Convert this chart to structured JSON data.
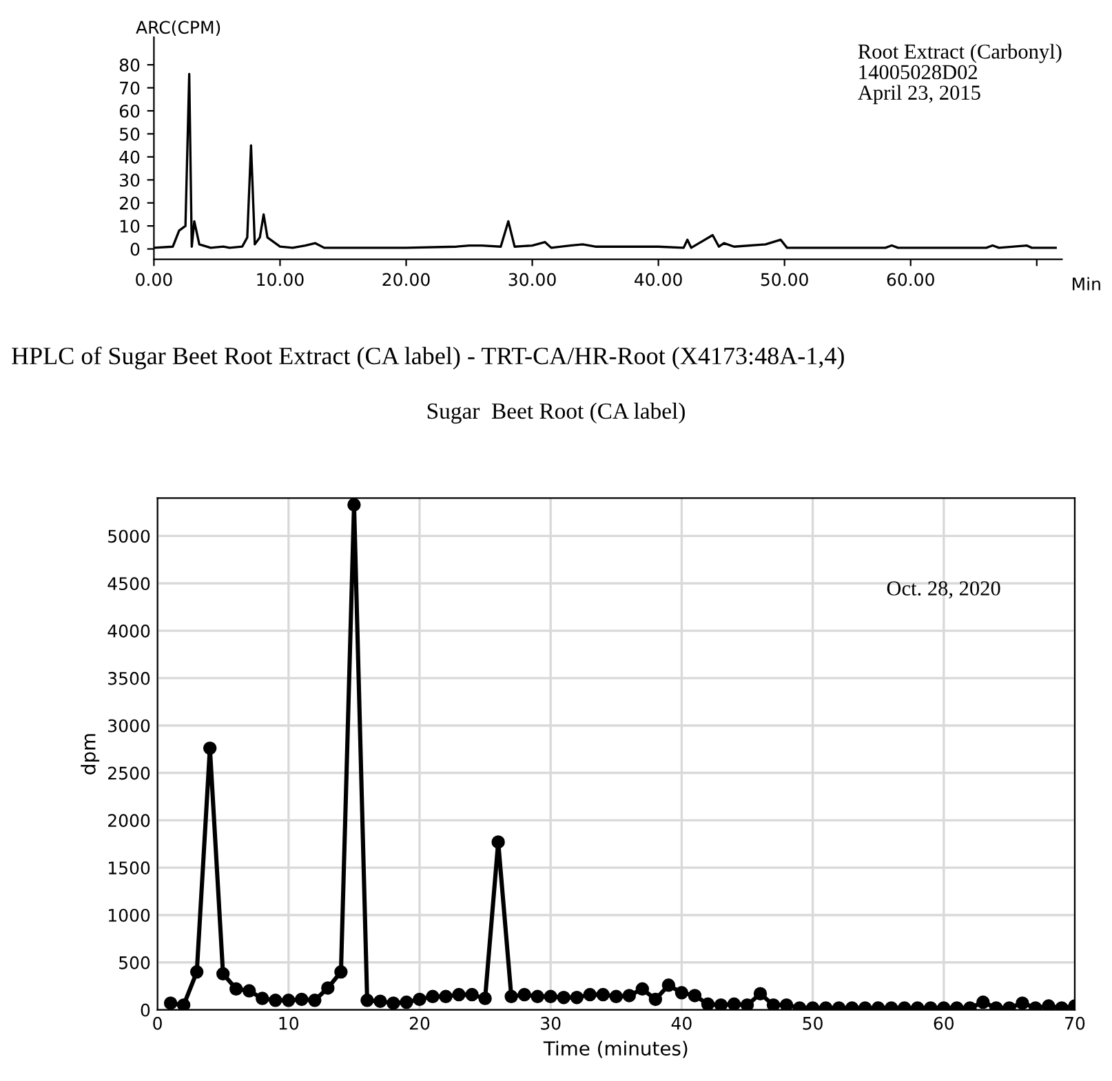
{
  "chart_data": [
    {
      "type": "line",
      "ylabel": "ARC(CPM)",
      "xlabel": "Min",
      "annotations": [
        "Root Extract (Carbonyl)\n14005028D02\nApril 23, 2015"
      ],
      "series": [
        {
          "color": "#000000",
          "x": [
            0,
            1.5,
            2.0,
            2.5,
            2.8,
            3.0,
            3.2,
            3.6,
            4.5,
            5.5,
            6,
            7,
            7.4,
            7.7,
            8.0,
            8.4,
            8.7,
            9.0,
            10,
            11,
            12,
            12.8,
            13.5,
            20,
            24,
            25,
            26,
            27.5,
            28.1,
            28.6,
            30,
            31,
            31.5,
            33,
            34,
            35,
            40,
            42,
            42.3,
            42.6,
            44.3,
            44.8,
            45.2,
            46,
            48.5,
            49.7,
            50.2,
            58,
            58.5,
            59,
            66,
            66.5,
            67,
            69.2,
            69.6,
            71.5
          ],
          "values": [
            0.5,
            1,
            8,
            10,
            76,
            1,
            12,
            2,
            0.5,
            1,
            0.5,
            1,
            5,
            45,
            2,
            5,
            15,
            5,
            1,
            0.5,
            1.5,
            2.5,
            0.5,
            0.5,
            1,
            1.5,
            1.5,
            1,
            12,
            1,
            1.5,
            3,
            0.5,
            1.5,
            2,
            1,
            1,
            0.5,
            4,
            0.5,
            6,
            1,
            2.5,
            1,
            2,
            4,
            0.5,
            0.5,
            1.5,
            0.5,
            0.5,
            1.5,
            0.5,
            1.5,
            0.5,
            0.5
          ]
        }
      ],
      "xlim": [
        0,
        72
      ],
      "xticks": [
        {
          "value": 0,
          "label": "0.00"
        },
        {
          "value": 10,
          "label": "10.00"
        },
        {
          "value": 20,
          "label": "20.00"
        },
        {
          "value": 30,
          "label": "30.00"
        },
        {
          "value": 40,
          "label": "40.00"
        },
        {
          "value": 50,
          "label": "50.00"
        },
        {
          "value": 60,
          "label": "60.00"
        },
        {
          "value": 70,
          "label": null
        }
      ],
      "ylim": [
        -4.5,
        92
      ],
      "yticks": [
        0,
        10,
        20,
        30,
        40,
        50,
        60,
        70,
        80
      ],
      "grid": false,
      "marker": "none",
      "line_style": "solid"
    },
    {
      "type": "line",
      "title": "HPLC of Sugar Beet Root Extract (CA label) - TRT-CA/HR-Root (X4173:48A-1,4)",
      "subtitle": "Sugar  Beet Root (CA label)",
      "xlabel": "Time (minutes)",
      "ylabel": "dpm",
      "annotations": [
        "Oct. 28, 2020"
      ],
      "series": [
        {
          "color": "#000000",
          "x": [
            1,
            2,
            3,
            4,
            5,
            6,
            7,
            8,
            9,
            10,
            11,
            12,
            13,
            14,
            15,
            16,
            17,
            18,
            19,
            20,
            21,
            22,
            23,
            24,
            25,
            26,
            27,
            28,
            29,
            30,
            31,
            32,
            33,
            34,
            35,
            36,
            37,
            38,
            39,
            40,
            41,
            42,
            43,
            44,
            45,
            46,
            47,
            48,
            49,
            50,
            51,
            52,
            53,
            54,
            55,
            56,
            57,
            58,
            59,
            60,
            61,
            62,
            63,
            64,
            65,
            66,
            67,
            68,
            69,
            70
          ],
          "values": [
            70,
            50,
            400,
            2760,
            380,
            220,
            200,
            120,
            100,
            100,
            110,
            100,
            230,
            400,
            5330,
            100,
            90,
            70,
            80,
            110,
            140,
            140,
            160,
            160,
            120,
            1770,
            140,
            160,
            140,
            140,
            130,
            130,
            160,
            160,
            140,
            150,
            220,
            110,
            260,
            180,
            150,
            60,
            50,
            60,
            50,
            170,
            50,
            50,
            20,
            20,
            20,
            20,
            20,
            20,
            20,
            20,
            20,
            20,
            20,
            20,
            20,
            20,
            80,
            20,
            20,
            70,
            20,
            40,
            20,
            40
          ]
        }
      ],
      "xlim": [
        0,
        70
      ],
      "xticks": [
        0,
        10,
        20,
        30,
        40,
        50,
        60,
        70
      ],
      "ylim": [
        0,
        5400
      ],
      "yticks": [
        0,
        500,
        1000,
        1500,
        2000,
        2500,
        3000,
        3500,
        4000,
        4500,
        5000
      ],
      "grid": true,
      "marker": "circle",
      "line_style": "solid"
    }
  ]
}
